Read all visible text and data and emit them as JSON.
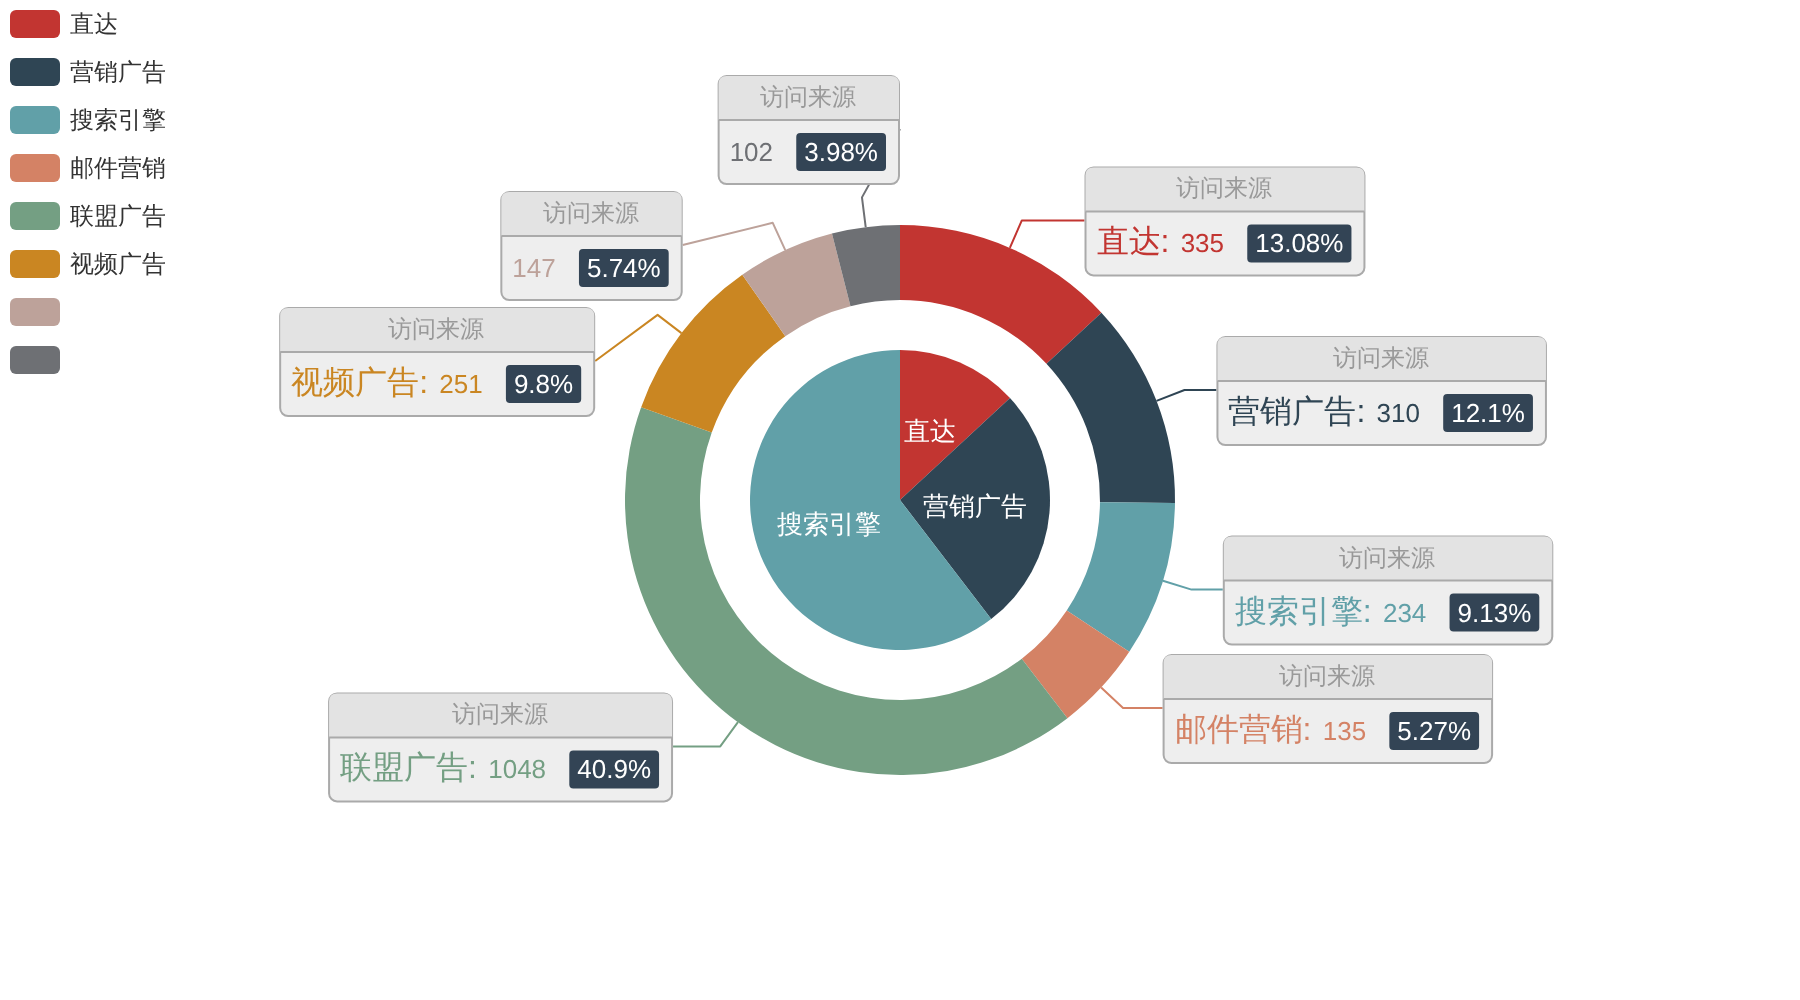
{
  "chart_data": [
    {
      "type": "pie",
      "categories": [
        "直达",
        "营销广告",
        "搜索引擎"
      ],
      "values": [
        13.1,
        26.5,
        60.4
      ],
      "colors": [
        "#c23531",
        "#2f4554",
        "#61a0a8"
      ]
    },
    {
      "type": "donut",
      "legend": "top left",
      "categories": [
        "直达",
        "营销广告",
        "搜索引擎",
        "邮件营销",
        "联盟广告",
        "视频广告",
        null,
        null
      ],
      "colors": [
        "#c23531",
        "#2f4554",
        "#61a0a8",
        "#d48265",
        "#749f83",
        "#ca8622",
        "#bda29a",
        "#6e7074"
      ],
      "series": [
        {
          "name": "访问来源",
          "values": [
            13.08,
            12.1,
            9.13,
            5.27,
            40.9,
            9.8,
            5.74,
            3.98
          ]
        }
      ],
      "annotations": [
        "直达: 335 13.08%",
        "营销广告: 310 12.1%",
        "搜索引擎: 234 9.13%",
        "邮件营销: 135 5.27%",
        "联盟广告: 1048 40.9%",
        "视频广告: 251 9.8%",
        "147 5.74%",
        "102 3.98%"
      ]
    }
  ]
}
